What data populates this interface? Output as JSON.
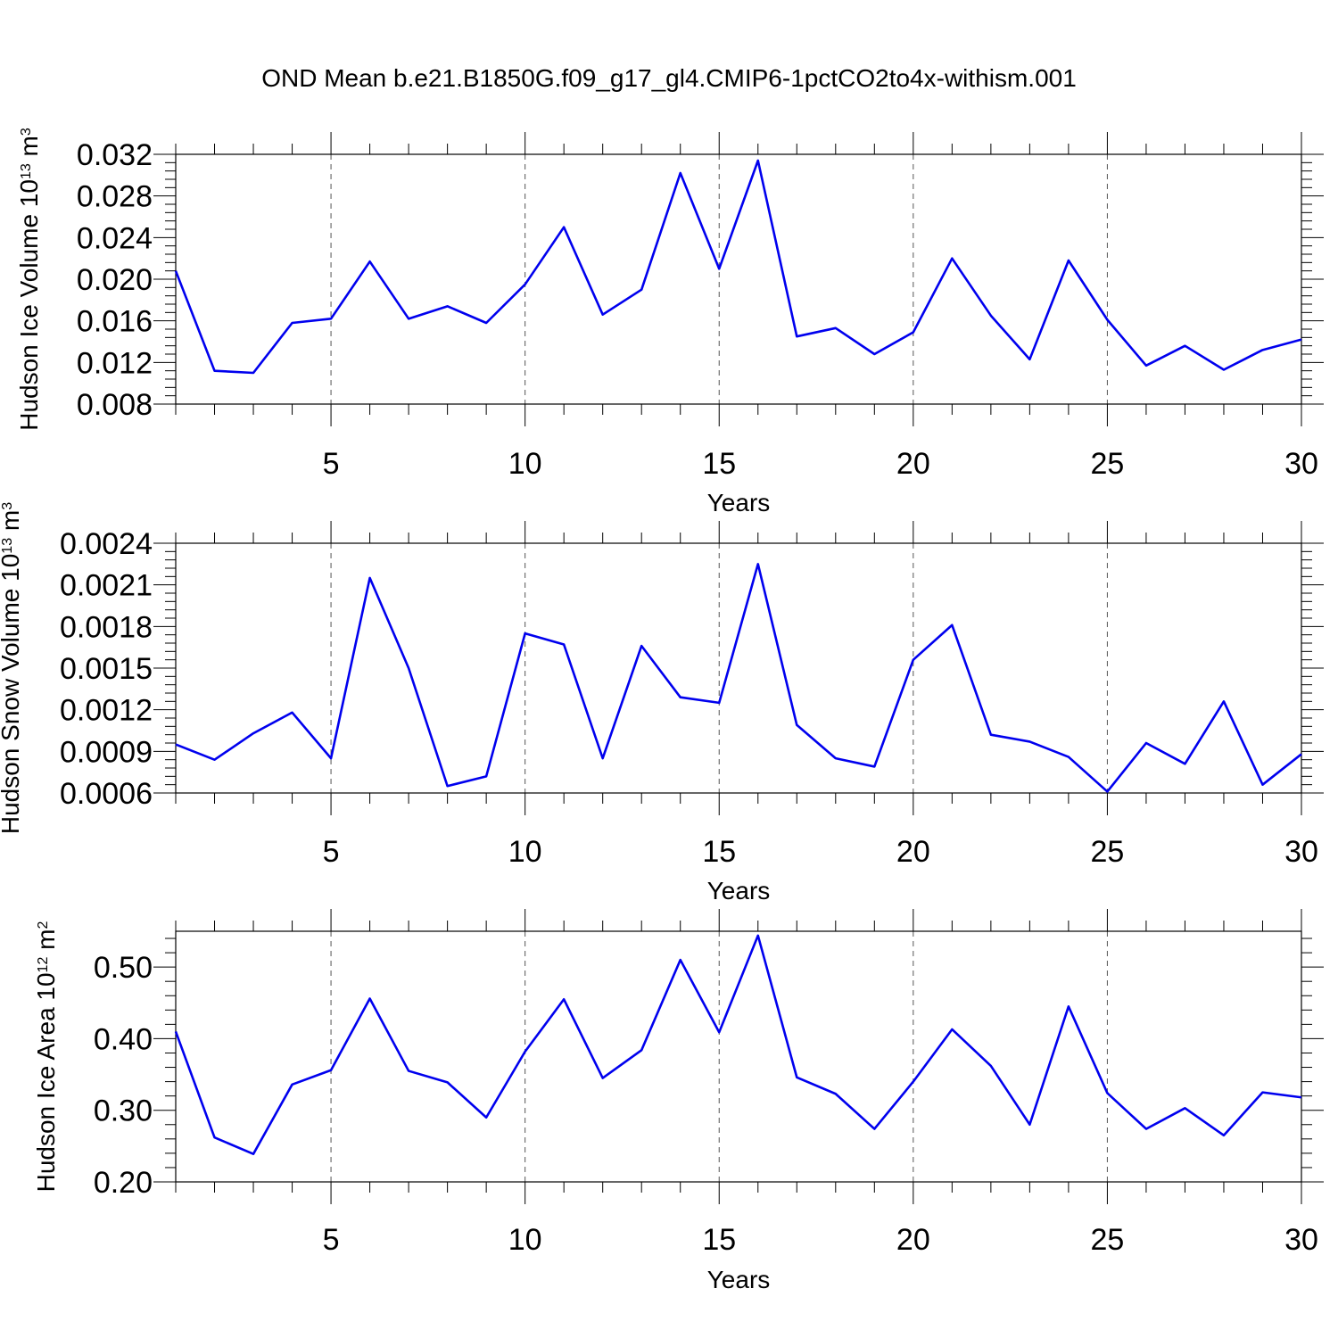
{
  "title": "OND Mean b.e21.B1850G.f09_g17_gl4.CMIP6-1pctCO2to4x-withism.001",
  "chart_data": [
    {
      "type": "line",
      "title": "",
      "xlabel": "Years",
      "ylabel": {
        "main": "Hudson Ice Volume 10",
        "exp": "13",
        "unit": " m",
        "unit_exp": "3"
      },
      "xlim": [
        1,
        30
      ],
      "ylim": [
        0.008,
        0.032
      ],
      "xticks": [
        5,
        10,
        15,
        20,
        25,
        30
      ],
      "xtick_labels": [
        "5",
        "10",
        "15",
        "20",
        "25",
        "30"
      ],
      "yticks": [
        0.008,
        0.012,
        0.016,
        0.02,
        0.024,
        0.028,
        0.032
      ],
      "ytick_labels": [
        "0.008",
        "0.012",
        "0.016",
        "0.020",
        "0.024",
        "0.028",
        "0.032"
      ],
      "grid": "vertical dashed at major x ticks",
      "color": "#0000ee",
      "series": [
        {
          "x": [
            1,
            2,
            3,
            4,
            5,
            6,
            7,
            8,
            9,
            10,
            11,
            12,
            13,
            14,
            15,
            16,
            17,
            18,
            19,
            20,
            21,
            22,
            23,
            24,
            25,
            26,
            27,
            28,
            29,
            30
          ],
          "values": [
            0.0208,
            0.0112,
            0.011,
            0.0158,
            0.0162,
            0.0217,
            0.0162,
            0.0174,
            0.0158,
            0.0195,
            0.025,
            0.0166,
            0.019,
            0.0302,
            0.021,
            0.0314,
            0.0145,
            0.0153,
            0.0128,
            0.0149,
            0.022,
            0.0165,
            0.0123,
            0.0218,
            0.0161,
            0.0117,
            0.0136,
            0.0113,
            0.0132,
            0.0142
          ]
        }
      ]
    },
    {
      "type": "line",
      "title": "",
      "xlabel": "Years",
      "ylabel": {
        "main": "Hudson Snow Volume 10",
        "exp": "13",
        "unit": " m",
        "unit_exp": "3"
      },
      "xlim": [
        1,
        30
      ],
      "ylim": [
        0.0006,
        0.0024
      ],
      "xticks": [
        5,
        10,
        15,
        20,
        25,
        30
      ],
      "xtick_labels": [
        "5",
        "10",
        "15",
        "20",
        "25",
        "30"
      ],
      "yticks": [
        0.0006,
        0.0009,
        0.0012,
        0.0015,
        0.0018,
        0.0021,
        0.0024
      ],
      "ytick_labels": [
        "0.0006",
        "0.0009",
        "0.0012",
        "0.0015",
        "0.0018",
        "0.0021",
        "0.0024"
      ],
      "grid": "vertical dashed at major x ticks",
      "color": "#0000ee",
      "series": [
        {
          "x": [
            1,
            2,
            3,
            4,
            5,
            6,
            7,
            8,
            9,
            10,
            11,
            12,
            13,
            14,
            15,
            16,
            17,
            18,
            19,
            20,
            21,
            22,
            23,
            24,
            25,
            26,
            27,
            28,
            29,
            30
          ],
          "values": [
            0.00095,
            0.00084,
            0.00103,
            0.00118,
            0.00085,
            0.00215,
            0.0015,
            0.00065,
            0.00072,
            0.00175,
            0.00167,
            0.00085,
            0.00166,
            0.00129,
            0.00125,
            0.00225,
            0.00109,
            0.00085,
            0.00079,
            0.00156,
            0.00181,
            0.00102,
            0.00097,
            0.00086,
            0.00061,
            0.00096,
            0.00081,
            0.00126,
            0.00066,
            0.00088
          ]
        }
      ]
    },
    {
      "type": "line",
      "title": "",
      "xlabel": "Years",
      "ylabel": {
        "main": "Hudson Ice Area 10",
        "exp": "12",
        "unit": " m",
        "unit_exp": "2"
      },
      "xlim": [
        1,
        30
      ],
      "ylim": [
        0.2,
        0.55
      ],
      "xticks": [
        5,
        10,
        15,
        20,
        25,
        30
      ],
      "xtick_labels": [
        "5",
        "10",
        "15",
        "20",
        "25",
        "30"
      ],
      "yticks": [
        0.2,
        0.3,
        0.4,
        0.5
      ],
      "ytick_labels": [
        "0.20",
        "0.30",
        "0.40",
        "0.50"
      ],
      "grid": "vertical dashed at major x ticks",
      "color": "#0000ee",
      "series": [
        {
          "x": [
            1,
            2,
            3,
            4,
            5,
            6,
            7,
            8,
            9,
            10,
            11,
            12,
            13,
            14,
            15,
            16,
            17,
            18,
            19,
            20,
            21,
            22,
            23,
            24,
            25,
            26,
            27,
            28,
            29,
            30
          ],
          "values": [
            0.41,
            0.262,
            0.239,
            0.336,
            0.356,
            0.456,
            0.355,
            0.339,
            0.29,
            0.382,
            0.455,
            0.345,
            0.384,
            0.51,
            0.409,
            0.544,
            0.346,
            0.323,
            0.274,
            0.34,
            0.413,
            0.362,
            0.28,
            0.445,
            0.324,
            0.274,
            0.303,
            0.265,
            0.325,
            0.318
          ]
        }
      ]
    }
  ]
}
